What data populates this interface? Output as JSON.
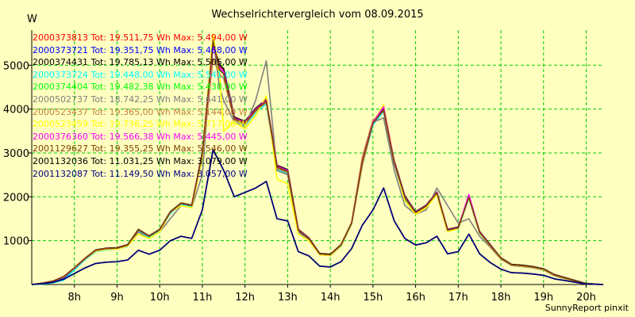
{
  "chart_data": {
    "type": "line",
    "title": "Wechselrichtervergleich vom 08.09.2015",
    "ylabel": "W",
    "xlabel": "",
    "footer": "SunnyReport pinxit",
    "ylim": [
      0,
      5800
    ],
    "xlim": [
      7.0,
      20.4
    ],
    "grid": true,
    "legend_position": "top-left",
    "y_ticks": [
      1000,
      2000,
      3000,
      4000,
      5000
    ],
    "y_tick_labels": [
      "1000",
      "2000",
      "3000",
      "4000",
      "5000"
    ],
    "x_ticks": [
      8,
      9,
      10,
      11,
      12,
      13,
      14,
      15,
      16,
      17,
      18,
      19,
      20
    ],
    "x_tick_labels": [
      "8h",
      "9h",
      "10h",
      "11h",
      "12h",
      "13h",
      "14h",
      "15h",
      "16h",
      "17h",
      "18h",
      "19h",
      "20h"
    ],
    "x": [
      7.0,
      7.25,
      7.5,
      7.75,
      8.0,
      8.25,
      8.5,
      8.75,
      9.0,
      9.25,
      9.5,
      9.75,
      10.0,
      10.25,
      10.5,
      10.75,
      11.0,
      11.25,
      11.4,
      11.5,
      11.75,
      12.0,
      12.25,
      12.5,
      12.75,
      13.0,
      13.25,
      13.5,
      13.75,
      14.0,
      14.25,
      14.5,
      14.75,
      15.0,
      15.25,
      15.5,
      15.75,
      16.0,
      16.25,
      16.5,
      16.75,
      17.0,
      17.25,
      17.5,
      17.75,
      18.0,
      18.25,
      18.5,
      18.75,
      19.0,
      19.25,
      19.5,
      19.75,
      20.0,
      20.4
    ],
    "series": [
      {
        "name": "2000373813 Tot: 19.511,75 Wh Max: 5.494,00 W",
        "color": "#ff0000",
        "values": [
          0,
          30,
          80,
          180,
          380,
          600,
          780,
          820,
          830,
          900,
          1250,
          1100,
          1250,
          1650,
          1850,
          1800,
          3000,
          5494,
          5000,
          4900,
          3800,
          3700,
          4000,
          4200,
          2700,
          2600,
          1250,
          1050,
          700,
          680,
          900,
          1400,
          2800,
          3700,
          4000,
          2800,
          2000,
          1650,
          1800,
          2100,
          1250,
          1300,
          2000,
          1200,
          900,
          600,
          450,
          430,
          400,
          350,
          220,
          150,
          80,
          20,
          0
        ]
      },
      {
        "name": "2000373721 Tot: 19.351,75 Wh Max: 5.468,00 W",
        "color": "#0000ff",
        "values": [
          0,
          20,
          60,
          150,
          350,
          580,
          760,
          800,
          820,
          880,
          1230,
          1080,
          1230,
          1630,
          1830,
          1780,
          2950,
          5468,
          4950,
          4850,
          3750,
          3650,
          3950,
          4150,
          2650,
          2550,
          1230,
          1030,
          690,
          670,
          880,
          1380,
          2750,
          3650,
          3950,
          2750,
          1950,
          1620,
          1780,
          2080,
          1230,
          1280,
          1980,
          1180,
          880,
          590,
          440,
          420,
          390,
          340,
          210,
          140,
          70,
          15,
          0
        ]
      },
      {
        "name": "2000374431 Tot: 19.785,13 Wh Max: 5.505,00 W",
        "color": "#000000",
        "values": [
          0,
          30,
          80,
          180,
          380,
          600,
          790,
          830,
          840,
          910,
          1260,
          1110,
          1260,
          1660,
          1860,
          1810,
          3020,
          5505,
          5010,
          4920,
          3820,
          3720,
          4020,
          4220,
          2720,
          2620,
          1260,
          1060,
          710,
          690,
          910,
          1410,
          2820,
          3720,
          4020,
          2820,
          2020,
          1660,
          1810,
          2110,
          1260,
          1310,
          2010,
          1210,
          910,
          610,
          460,
          440,
          410,
          360,
          230,
          160,
          90,
          25,
          0
        ]
      },
      {
        "name": "2000373724 Tot: 19.448,00 Wh Max: 5.541,00 W",
        "color": "#00ffff",
        "values": [
          0,
          10,
          40,
          100,
          330,
          570,
          750,
          790,
          810,
          870,
          1220,
          1070,
          1220,
          1620,
          1820,
          1770,
          2940,
          5541,
          4900,
          4800,
          3700,
          3620,
          3920,
          4120,
          2620,
          2520,
          1220,
          1020,
          680,
          660,
          870,
          1370,
          2740,
          3640,
          3940,
          2740,
          1940,
          1610,
          1770,
          2070,
          1220,
          1270,
          1970,
          1170,
          870,
          580,
          430,
          410,
          380,
          330,
          200,
          130,
          60,
          10,
          0
        ]
      },
      {
        "name": "2000374404 Tot: 19.482,38 Wh Max: 5.438,00 W",
        "color": "#00ff00",
        "values": [
          0,
          30,
          80,
          180,
          380,
          600,
          780,
          820,
          830,
          900,
          1250,
          1100,
          1250,
          1650,
          1850,
          1800,
          3000,
          5438,
          4900,
          4800,
          3780,
          3680,
          3980,
          4180,
          2680,
          2580,
          1240,
          1040,
          700,
          680,
          900,
          1400,
          2780,
          3680,
          3980,
          2780,
          1990,
          1640,
          1790,
          2090,
          1240,
          1290,
          1990,
          1190,
          890,
          600,
          450,
          430,
          400,
          350,
          220,
          150,
          80,
          20,
          0
        ]
      },
      {
        "name": "2000502737 Tot: 18.742,25 Wh Max: 5.641,00 W",
        "color": "#808080",
        "values": [
          0,
          30,
          80,
          170,
          360,
          580,
          760,
          800,
          810,
          880,
          1200,
          1050,
          1200,
          1500,
          1800,
          1750,
          2500,
          5641,
          4500,
          4200,
          3700,
          3600,
          4200,
          5100,
          2600,
          2500,
          1200,
          1000,
          680,
          660,
          880,
          1380,
          2700,
          3700,
          3800,
          2600,
          1800,
          1600,
          1700,
          2200,
          1800,
          1400,
          1500,
          1100,
          850,
          580,
          430,
          410,
          380,
          330,
          200,
          130,
          70,
          15,
          0
        ]
      },
      {
        "name": "2000523437 Tot: 19.365,00 Wh Max: 5.144,00 W",
        "color": "#c08040",
        "values": [
          0,
          30,
          80,
          180,
          380,
          600,
          780,
          820,
          830,
          900,
          1250,
          1100,
          1250,
          1650,
          1850,
          1800,
          2900,
          5144,
          4800,
          4700,
          3750,
          3650,
          3950,
          4150,
          2650,
          2550,
          1240,
          1040,
          700,
          680,
          900,
          1400,
          2900,
          3750,
          3950,
          2750,
          1970,
          1630,
          1780,
          2080,
          1240,
          1290,
          1980,
          1180,
          880,
          590,
          440,
          420,
          390,
          340,
          210,
          140,
          70,
          15,
          0
        ]
      },
      {
        "name": "2000523459 Tot: 19.736,25 Wh Max: 5.717,00 W",
        "color": "#ffff00",
        "values": [
          0,
          30,
          80,
          170,
          380,
          600,
          760,
          800,
          810,
          880,
          1150,
          1050,
          1200,
          1650,
          1800,
          1750,
          2900,
          5717,
          4800,
          3500,
          3700,
          3550,
          3850,
          4300,
          2400,
          2300,
          1150,
          1000,
          680,
          660,
          880,
          1380,
          2750,
          3700,
          4100,
          2800,
          1900,
          1600,
          1750,
          2050,
          1200,
          1280,
          2000,
          1180,
          880,
          590,
          440,
          420,
          390,
          340,
          210,
          140,
          70,
          15,
          0
        ]
      },
      {
        "name": "2000376360 Tot: 19.566,38 Wh Max: 5.445,00 W",
        "color": "#ff00ff",
        "values": [
          0,
          30,
          80,
          180,
          380,
          600,
          780,
          820,
          830,
          900,
          1250,
          1100,
          1250,
          1650,
          1850,
          1800,
          3000,
          5445,
          4950,
          4850,
          3800,
          3700,
          4000,
          4200,
          2700,
          2600,
          1250,
          1050,
          700,
          680,
          900,
          1400,
          2800,
          3700,
          4050,
          2800,
          2000,
          1650,
          1800,
          2100,
          1250,
          1300,
          2050,
          1200,
          900,
          600,
          450,
          430,
          400,
          350,
          220,
          150,
          80,
          20,
          0
        ]
      },
      {
        "name": "2001129627 Tot: 19.355,25 Wh Max: 5.546,00 W",
        "color": "#804000",
        "values": [
          0,
          30,
          80,
          180,
          380,
          600,
          780,
          820,
          830,
          900,
          1250,
          1100,
          1250,
          1650,
          1850,
          1800,
          2980,
          5546,
          4900,
          4800,
          3780,
          3680,
          3980,
          4180,
          2680,
          2580,
          1240,
          1040,
          700,
          680,
          900,
          1400,
          2780,
          3680,
          3980,
          2780,
          1990,
          1640,
          1790,
          2090,
          1240,
          1290,
          1990,
          1190,
          890,
          600,
          450,
          430,
          400,
          350,
          220,
          150,
          80,
          20,
          0
        ]
      },
      {
        "name": "2001132036 Tot: 11.031,25 Wh Max: 3.079,00 W",
        "color": "#000000",
        "values": [
          0,
          20,
          50,
          120,
          250,
          380,
          480,
          510,
          520,
          560,
          780,
          690,
          780,
          1000,
          1100,
          1050,
          1700,
          3079,
          2800,
          2600,
          2000,
          2100,
          2200,
          2350,
          1500,
          1450,
          750,
          650,
          420,
          400,
          520,
          820,
          1350,
          1700,
          2200,
          1450,
          1050,
          900,
          950,
          1100,
          700,
          750,
          1150,
          700,
          500,
          350,
          270,
          260,
          240,
          210,
          130,
          90,
          50,
          10,
          0
        ]
      },
      {
        "name": "2001132087 Tot: 11.149,50 Wh Max: 3.057,00 W",
        "color": "#000080",
        "values": [
          0,
          20,
          50,
          120,
          250,
          380,
          480,
          510,
          520,
          560,
          780,
          690,
          780,
          1000,
          1100,
          1050,
          1700,
          3057,
          2800,
          2600,
          2000,
          2100,
          2200,
          2350,
          1500,
          1450,
          750,
          650,
          420,
          400,
          520,
          820,
          1350,
          1700,
          2200,
          1450,
          1050,
          900,
          950,
          1100,
          700,
          750,
          1150,
          700,
          500,
          350,
          270,
          260,
          240,
          210,
          130,
          90,
          50,
          10,
          0
        ]
      }
    ]
  }
}
